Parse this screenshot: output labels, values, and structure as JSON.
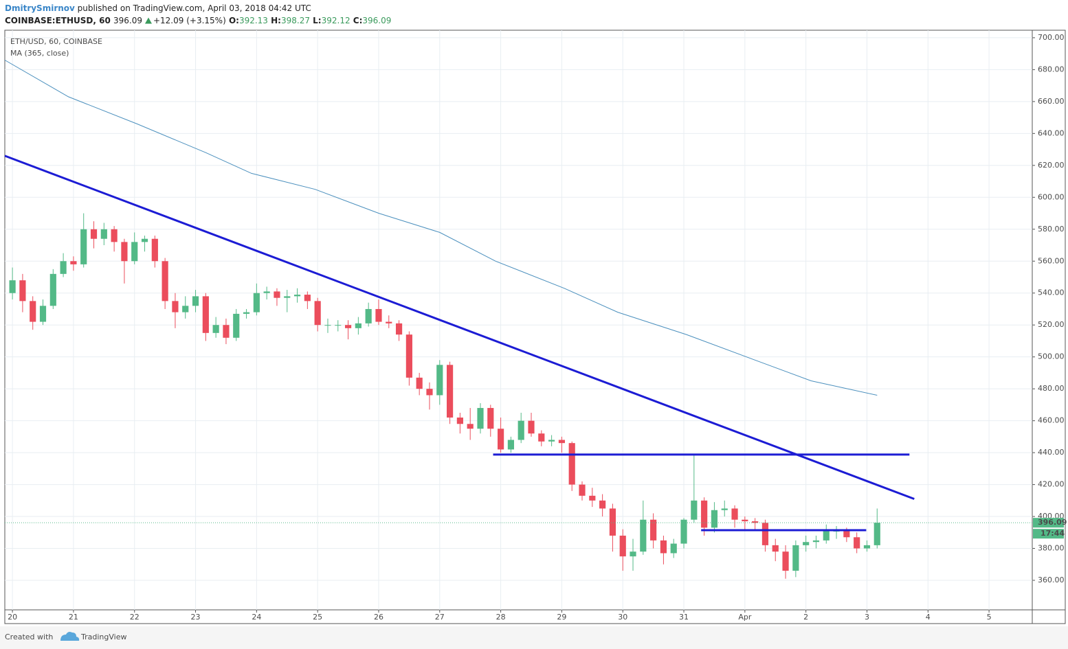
{
  "header": {
    "author": "DmitrySmirnov",
    "published": "published on TradingView.com, April 03, 2018 04:42 UTC",
    "symbol": "COINBASE:ETHUSD, 60",
    "last": 396.09,
    "change": "+12.09 (+3.15%)",
    "open_label": "O:",
    "open": 392.13,
    "high_label": "H:",
    "high": 398.27,
    "low_label": "L:",
    "low": 392.12,
    "close_label": "C:",
    "close": 396.09
  },
  "chart_data": {
    "type": "candlestick",
    "title": "ETH/USD, 60, COINBASE",
    "up_color": "#53b987",
    "down_color": "#eb4d5c",
    "grid": true,
    "last_price": 396.09,
    "countdown": "17:44",
    "xlim": [
      -3,
      401
    ],
    "ylim": [
      341.5,
      704.7
    ],
    "xticks": [
      {
        "value": 0,
        "label": "20"
      },
      {
        "value": 24,
        "label": "21"
      },
      {
        "value": 48,
        "label": "22"
      },
      {
        "value": 72,
        "label": "23"
      },
      {
        "value": 96,
        "label": "24"
      },
      {
        "value": 120,
        "label": "25"
      },
      {
        "value": 144,
        "label": "26"
      },
      {
        "value": 168,
        "label": "27"
      },
      {
        "value": 192,
        "label": "28"
      },
      {
        "value": 216,
        "label": "29"
      },
      {
        "value": 240,
        "label": "30"
      },
      {
        "value": 264,
        "label": "31"
      },
      {
        "value": 288,
        "label": "Apr"
      },
      {
        "value": 312,
        "label": "2"
      },
      {
        "value": 336,
        "label": "3"
      },
      {
        "value": 360,
        "label": "4"
      },
      {
        "value": 384,
        "label": "5"
      }
    ],
    "yticks": [
      {
        "value": 360,
        "label": "360.00"
      },
      {
        "value": 380,
        "label": "380.00"
      },
      {
        "value": 400,
        "label": "400.00"
      },
      {
        "value": 420,
        "label": "420.00"
      },
      {
        "value": 440,
        "label": "440.00"
      },
      {
        "value": 460,
        "label": "460.00"
      },
      {
        "value": 480,
        "label": "480.00"
      },
      {
        "value": 500,
        "label": "500.00"
      },
      {
        "value": 520,
        "label": "520.00"
      },
      {
        "value": 540,
        "label": "540.00"
      },
      {
        "value": 560,
        "label": "560.00"
      },
      {
        "value": 580,
        "label": "580.00"
      },
      {
        "value": 600,
        "label": "600.00"
      },
      {
        "value": 620,
        "label": "620.00"
      },
      {
        "value": 640,
        "label": "640.00"
      },
      {
        "value": 660,
        "label": "660.00"
      },
      {
        "value": 680,
        "label": "680.00"
      },
      {
        "value": 700,
        "label": "700.00"
      }
    ],
    "x": [
      0,
      4,
      8,
      12,
      16,
      20,
      24,
      28,
      32,
      36,
      40,
      44,
      48,
      52,
      56,
      60,
      64,
      68,
      72,
      76,
      80,
      84,
      88,
      92,
      96,
      100,
      104,
      108,
      112,
      116,
      120,
      124,
      128,
      132,
      136,
      140,
      144,
      148,
      152,
      156,
      160,
      164,
      168,
      172,
      176,
      180,
      184,
      188,
      192,
      196,
      200,
      204,
      208,
      212,
      216,
      220,
      224,
      228,
      232,
      236,
      240,
      244,
      248,
      252,
      256,
      260,
      264,
      268,
      272,
      276,
      280,
      284,
      288,
      292,
      296,
      300,
      304,
      308,
      312,
      316,
      320,
      324,
      328,
      332,
      336,
      340
    ],
    "candles": [
      [
        540,
        556,
        536,
        548
      ],
      [
        548,
        552,
        528,
        535
      ],
      [
        535,
        538,
        517,
        522
      ],
      [
        522,
        536,
        520,
        532
      ],
      [
        532,
        555,
        530,
        552
      ],
      [
        552,
        565,
        550,
        560
      ],
      [
        560,
        563,
        554,
        558
      ],
      [
        558,
        590,
        556,
        580
      ],
      [
        580,
        585,
        568,
        574
      ],
      [
        574,
        584,
        570,
        580
      ],
      [
        580,
        582,
        566,
        572
      ],
      [
        572,
        574,
        546,
        560
      ],
      [
        560,
        578,
        558,
        572
      ],
      [
        572,
        576,
        566,
        574
      ],
      [
        574,
        576,
        556,
        560
      ],
      [
        560,
        562,
        530,
        535
      ],
      [
        535,
        540,
        518,
        528
      ],
      [
        528,
        538,
        524,
        532
      ],
      [
        532,
        542,
        528,
        538
      ],
      [
        538,
        540,
        510,
        515
      ],
      [
        515,
        525,
        512,
        520
      ],
      [
        520,
        524,
        508,
        512
      ],
      [
        512,
        530,
        510,
        527
      ],
      [
        527,
        530,
        524,
        528
      ],
      [
        528,
        546,
        526,
        540
      ],
      [
        540,
        544,
        536,
        541
      ],
      [
        541,
        543,
        532,
        537
      ],
      [
        537,
        542,
        528,
        538
      ],
      [
        538,
        543,
        534,
        539
      ],
      [
        539,
        541,
        530,
        535
      ],
      [
        535,
        537,
        516,
        520
      ],
      [
        520,
        524,
        515,
        520
      ],
      [
        520,
        523,
        516,
        520
      ],
      [
        520,
        523,
        511,
        518
      ],
      [
        518,
        525,
        514,
        521
      ],
      [
        521,
        534,
        519,
        530
      ],
      [
        530,
        536,
        520,
        522
      ],
      [
        522,
        526,
        518,
        521
      ],
      [
        521,
        523,
        510,
        514
      ],
      [
        514,
        516,
        482,
        487
      ],
      [
        487,
        490,
        476,
        480
      ],
      [
        480,
        484,
        467,
        476
      ],
      [
        476,
        498,
        470,
        495
      ],
      [
        495,
        497,
        458,
        462
      ],
      [
        462,
        465,
        452,
        458
      ],
      [
        458,
        468,
        448,
        455
      ],
      [
        455,
        471,
        452,
        468
      ],
      [
        468,
        470,
        450,
        455
      ],
      [
        455,
        462,
        440,
        442
      ],
      [
        442,
        450,
        440,
        448
      ],
      [
        448,
        465,
        446,
        460
      ],
      [
        460,
        465,
        450,
        452
      ],
      [
        452,
        454,
        444,
        447
      ],
      [
        447,
        451,
        444,
        448
      ],
      [
        448,
        450,
        440,
        446
      ],
      [
        446,
        447,
        416,
        420
      ],
      [
        420,
        422,
        410,
        413
      ],
      [
        413,
        418,
        406,
        410
      ],
      [
        410,
        414,
        400,
        405
      ],
      [
        405,
        408,
        378,
        388
      ],
      [
        388,
        392,
        366,
        375
      ],
      [
        375,
        386,
        366,
        378
      ],
      [
        378,
        410,
        376,
        398
      ],
      [
        398,
        402,
        380,
        385
      ],
      [
        385,
        388,
        370,
        377
      ],
      [
        377,
        386,
        374,
        383
      ],
      [
        383,
        399,
        380,
        398
      ],
      [
        398,
        439,
        396,
        410
      ],
      [
        410,
        412,
        388,
        393
      ],
      [
        393,
        409,
        390,
        404
      ],
      [
        404,
        410,
        400,
        405
      ],
      [
        405,
        407,
        393,
        398
      ],
      [
        398,
        400,
        392,
        397
      ],
      [
        397,
        399,
        392,
        396
      ],
      [
        396,
        398,
        378,
        382
      ],
      [
        382,
        386,
        372,
        378
      ],
      [
        378,
        382,
        361,
        366
      ],
      [
        366,
        385,
        362,
        382
      ],
      [
        382,
        388,
        378,
        384
      ],
      [
        384,
        388,
        380,
        385
      ],
      [
        385,
        395,
        383,
        391
      ],
      [
        391,
        394,
        386,
        391
      ],
      [
        391,
        393,
        384,
        387
      ],
      [
        387,
        390,
        377,
        380
      ],
      [
        380,
        385,
        378,
        382
      ],
      [
        382,
        405,
        380,
        396.09
      ]
    ],
    "series": [
      {
        "name": "MA (365, close)",
        "color": "#4a8fbd",
        "x": [
          -3,
          22,
          49,
          76,
          94,
          119,
          144,
          168,
          190,
          217,
          238,
          265,
          292,
          314,
          340
        ],
        "values": [
          686,
          663,
          646,
          628,
          615,
          605,
          590,
          578,
          560,
          543,
          528,
          514,
          498,
          485,
          476
        ]
      }
    ],
    "trendlines": [
      {
        "color": "#1c1cd4",
        "x": [
          -3,
          354.6
        ],
        "values": [
          626,
          411
        ]
      },
      {
        "color": "#1c1cd4",
        "x": [
          189,
          352.7
        ],
        "values": [
          438.8,
          438.8
        ]
      },
      {
        "color": "#1c1cd4",
        "x": [
          270.8,
          335.7
        ],
        "values": [
          391.4,
          391.4
        ]
      }
    ]
  },
  "footer": {
    "created": "Created with",
    "brand": "TradingView"
  }
}
